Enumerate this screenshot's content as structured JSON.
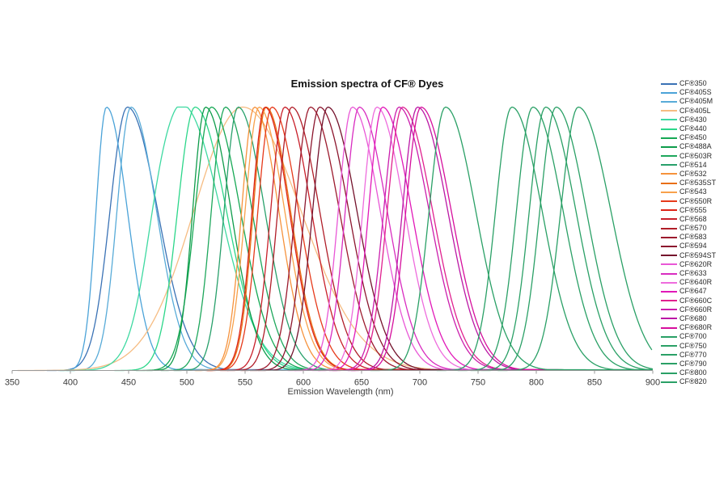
{
  "title": "Emission spectra of CF® Dyes",
  "chart_data": {
    "type": "line",
    "title": "Emission spectra of CF® Dyes",
    "xlabel": "Emission Wavelength (nm)",
    "ylabel": "",
    "xlim": [
      350,
      900
    ],
    "ylim": [
      0,
      1
    ],
    "x_ticks": [
      350,
      400,
      450,
      500,
      550,
      600,
      650,
      700,
      750,
      800,
      850,
      900
    ],
    "grid": false,
    "legend_position": "right",
    "normalized": true,
    "axis_color": "#9a9a9a",
    "tick_label_color": "#3a3a3a",
    "series": [
      {
        "name": "CF®350",
        "color": "#3a72b5",
        "peak_nm": 449,
        "sigma_left_nm": 15,
        "sigma_right_nm": 26,
        "tail_end_nm": 620
      },
      {
        "name": "CF®405S",
        "color": "#4ba3d8",
        "peak_nm": 431,
        "sigma_left_nm": 9,
        "sigma_right_nm": 18,
        "tail_end_nm": 690
      },
      {
        "name": "CF®405M",
        "color": "#58abd8",
        "peak_nm": 452,
        "sigma_left_nm": 12,
        "sigma_right_nm": 22,
        "tail_end_nm": 740
      },
      {
        "name": "CF®405L",
        "color": "#f6bc82",
        "peak_nm": 548,
        "sigma_left_nm": 42,
        "sigma_right_nm": 50,
        "tail_end_nm": 710
      },
      {
        "name": "CF®430",
        "color": "#3ed9a1",
        "peak_nm": 497,
        "sigma_left_nm": 23,
        "sigma_right_nm": 32,
        "tail_end_nm": 700,
        "shoulder": {
          "pos_nm": 474,
          "amp": 0.1,
          "sigma_nm": 11
        }
      },
      {
        "name": "CF®440",
        "color": "#2bd689",
        "peak_nm": 507,
        "sigma_left_nm": 15,
        "sigma_right_nm": 27,
        "tail_end_nm": 700
      },
      {
        "name": "CF®450",
        "color": "#16a854",
        "peak_nm": 521,
        "sigma_left_nm": 14,
        "sigma_right_nm": 25
      },
      {
        "name": "CF®488A",
        "color": "#0e9c4b",
        "peak_nm": 516,
        "sigma_left_nm": 11,
        "sigma_right_nm": 22
      },
      {
        "name": "CF®503R",
        "color": "#1ea75c",
        "peak_nm": 533,
        "sigma_left_nm": 12,
        "sigma_right_nm": 23
      },
      {
        "name": "CF®514",
        "color": "#28a06b",
        "peak_nm": 544,
        "sigma_left_nm": 12,
        "sigma_right_nm": 23
      },
      {
        "name": "CF®532",
        "color": "#f6923c",
        "peak_nm": 558,
        "sigma_left_nm": 11,
        "sigma_right_nm": 21
      },
      {
        "name": "CF®535ST",
        "color": "#e86f15",
        "peak_nm": 568,
        "sigma_left_nm": 11,
        "sigma_right_nm": 21
      },
      {
        "name": "CF®543",
        "color": "#f8a14b",
        "peak_nm": 562,
        "sigma_left_nm": 12,
        "sigma_right_nm": 22
      },
      {
        "name": "CF®550R",
        "color": "#e63a1b",
        "peak_nm": 573,
        "sigma_left_nm": 12,
        "sigma_right_nm": 23
      },
      {
        "name": "CF®555",
        "color": "#dd2417",
        "peak_nm": 567,
        "sigma_left_nm": 11,
        "sigma_right_nm": 21
      },
      {
        "name": "CF®568",
        "color": "#c8202a",
        "peak_nm": 584,
        "sigma_left_nm": 12,
        "sigma_right_nm": 23
      },
      {
        "name": "CF®570",
        "color": "#b01d28",
        "peak_nm": 590,
        "sigma_left_nm": 12,
        "sigma_right_nm": 24
      },
      {
        "name": "CF®583",
        "color": "#9c1a2d",
        "peak_nm": 606,
        "sigma_left_nm": 13,
        "sigma_right_nm": 25
      },
      {
        "name": "CF®594",
        "color": "#8c162e",
        "peak_nm": 614,
        "sigma_left_nm": 13,
        "sigma_right_nm": 25
      },
      {
        "name": "CF®594ST",
        "color": "#74122c",
        "peak_nm": 621,
        "sigma_left_nm": 13,
        "sigma_right_nm": 25
      },
      {
        "name": "CF®620R",
        "color": "#e957d6",
        "peak_nm": 642,
        "sigma_left_nm": 12,
        "sigma_right_nm": 24
      },
      {
        "name": "CF®633",
        "color": "#d92cc0",
        "peak_nm": 648,
        "sigma_left_nm": 12,
        "sigma_right_nm": 24
      },
      {
        "name": "CF®640R",
        "color": "#ee6cdd",
        "peak_nm": 663,
        "sigma_left_nm": 12,
        "sigma_right_nm": 24
      },
      {
        "name": "CF®647",
        "color": "#e118b8",
        "peak_nm": 668,
        "sigma_left_nm": 12,
        "sigma_right_nm": 25
      },
      {
        "name": "CF®660C",
        "color": "#e0218f",
        "peak_nm": 685,
        "sigma_left_nm": 13,
        "sigma_right_nm": 26
      },
      {
        "name": "CF®660R",
        "color": "#cb1ead",
        "peak_nm": 682,
        "sigma_left_nm": 13,
        "sigma_right_nm": 26
      },
      {
        "name": "CF®680",
        "color": "#bb17a5",
        "peak_nm": 698,
        "sigma_left_nm": 13,
        "sigma_right_nm": 26
      },
      {
        "name": "CF®680R",
        "color": "#d60f9d",
        "peak_nm": 701,
        "sigma_left_nm": 13,
        "sigma_right_nm": 26
      },
      {
        "name": "CF®700",
        "color": "#2aa066",
        "peak_nm": 722,
        "sigma_left_nm": 14,
        "sigma_right_nm": 26
      },
      {
        "name": "CF®750",
        "color": "#2aa066",
        "peak_nm": 779,
        "sigma_left_nm": 14,
        "sigma_right_nm": 26
      },
      {
        "name": "CF®770",
        "color": "#2aa066",
        "peak_nm": 797,
        "sigma_left_nm": 14,
        "sigma_right_nm": 26
      },
      {
        "name": "CF®790",
        "color": "#2aa066",
        "peak_nm": 808,
        "sigma_left_nm": 14,
        "sigma_right_nm": 26
      },
      {
        "name": "CF®800",
        "color": "#2aa066",
        "peak_nm": 817,
        "sigma_left_nm": 14,
        "sigma_right_nm": 26
      },
      {
        "name": "CF®820",
        "color": "#2aa066",
        "peak_nm": 836,
        "sigma_left_nm": 15,
        "sigma_right_nm": 28
      }
    ]
  }
}
